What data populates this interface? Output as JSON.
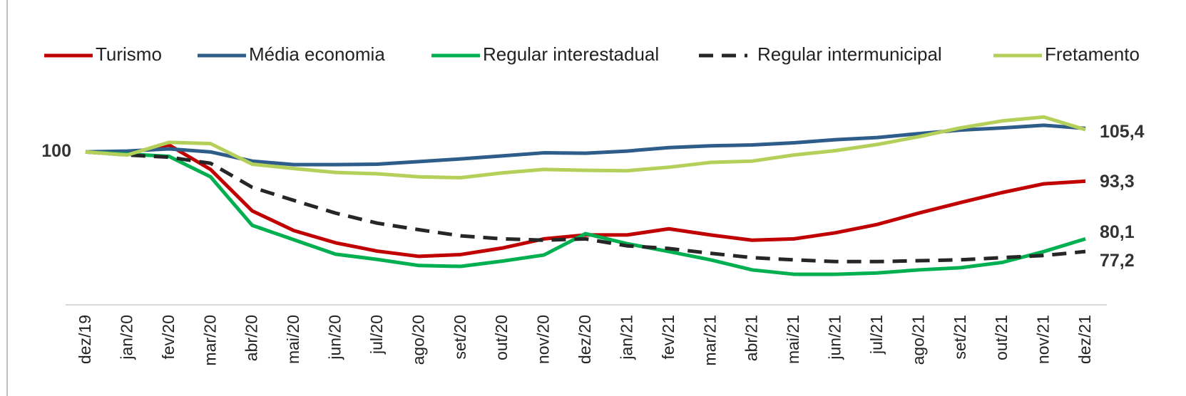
{
  "chart_data": {
    "type": "line",
    "categories": [
      "dez/19",
      "jan/20",
      "fev/20",
      "mar/20",
      "abr/20",
      "mai/20",
      "jun/20",
      "jul/20",
      "ago/20",
      "set/20",
      "out/20",
      "nov/20",
      "dez/20",
      "jan/21",
      "fev/21",
      "mar/21",
      "abr/21",
      "mai/21",
      "jun/21",
      "jul/21",
      "ago/21",
      "set/21",
      "out/21",
      "nov/21",
      "dez/21"
    ],
    "ylim": [
      65,
      110
    ],
    "start_label": "100",
    "series": [
      {
        "name": "Turismo",
        "color": "#c00000",
        "dash": false,
        "end_label": "93,3",
        "values": [
          100,
          99.7,
          101.6,
          96.0,
          86.5,
          82.0,
          79.2,
          77.3,
          76.1,
          76.5,
          78.0,
          80.1,
          81.0,
          81.0,
          82.4,
          81.0,
          79.8,
          80.1,
          81.5,
          83.4,
          86.0,
          88.4,
          90.7,
          92.7,
          93.3
        ]
      },
      {
        "name": "Média economia",
        "color": "#2f5d8a",
        "dash": false,
        "end_label": "105,4",
        "values": [
          100,
          100.2,
          100.7,
          100,
          97.9,
          97.1,
          97.1,
          97.2,
          97.8,
          98.4,
          99.1,
          99.8,
          99.7,
          100.2,
          101.0,
          101.4,
          101.6,
          102.1,
          102.8,
          103.3,
          104.2,
          105.0,
          105.5,
          106.1,
          105.4
        ]
      },
      {
        "name": "Regular interestadual",
        "color": "#00b050",
        "dash": false,
        "end_label": "80,1",
        "values": [
          100,
          99.5,
          99.0,
          94.3,
          83.2,
          79.9,
          76.6,
          75.4,
          74.0,
          73.8,
          75.0,
          76.4,
          81.3,
          79.0,
          77.2,
          75.3,
          73.0,
          72.0,
          72.0,
          72.3,
          73.0,
          73.5,
          74.7,
          77.2,
          80.1
        ]
      },
      {
        "name": "Regular intermunicipal",
        "color": "#262626",
        "dash": true,
        "end_label": "77,2",
        "values": [
          100,
          99.3,
          98.8,
          97.4,
          91.9,
          88.9,
          86.0,
          83.7,
          82.2,
          80.8,
          80.1,
          79.8,
          80.1,
          78.5,
          77.9,
          76.8,
          75.8,
          75.3,
          74.9,
          74.9,
          75.1,
          75.3,
          75.8,
          76.3,
          77.2
        ]
      },
      {
        "name": "Fretamento",
        "color": "#b5d05a",
        "dash": false,
        "values": [
          100,
          99.3,
          102.2,
          101.9,
          97.2,
          96.2,
          95.3,
          95.0,
          94.3,
          94.1,
          95.2,
          96.0,
          95.8,
          95.7,
          96.5,
          97.6,
          97.9,
          99.3,
          100.3,
          101.7,
          103.5,
          105.5,
          107.1,
          108.0,
          105.1
        ]
      }
    ]
  }
}
